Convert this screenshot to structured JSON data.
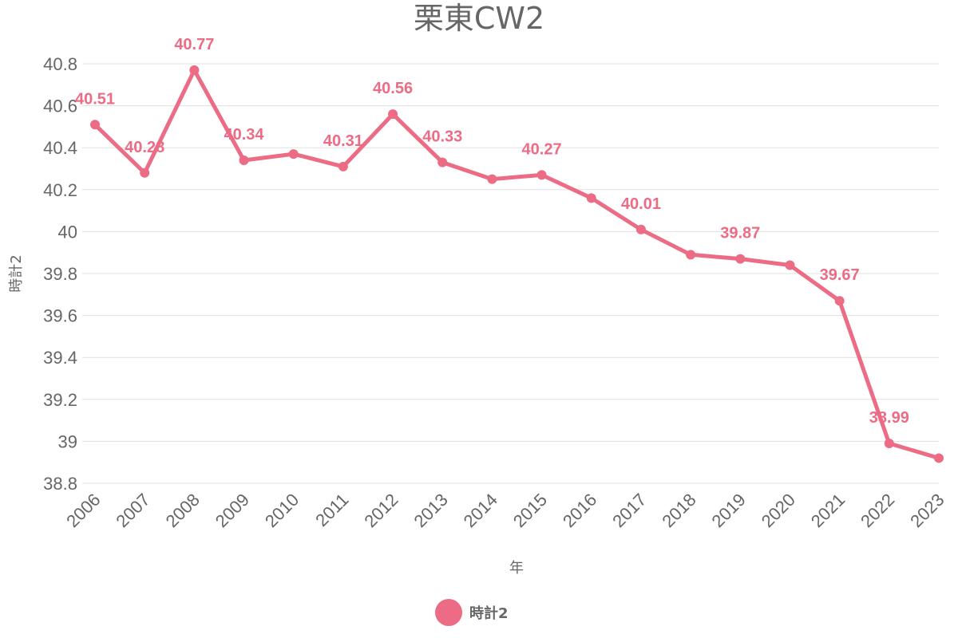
{
  "chart_data": {
    "type": "line",
    "title": "栗東CW2",
    "xlabel": "年",
    "ylabel": "時計2",
    "ylim": [
      38.8,
      40.8
    ],
    "yticks": [
      "40.8",
      "40.6",
      "40.4",
      "40.2",
      "40",
      "39.8",
      "39.6",
      "39.4",
      "39.2",
      "39",
      "38.8"
    ],
    "grid": true,
    "legend_position": "bottom",
    "categories": [
      "2006",
      "2007",
      "2008",
      "2009",
      "2010",
      "2011",
      "2012",
      "2013",
      "2014",
      "2015",
      "2016",
      "2017",
      "2018",
      "2019",
      "2020",
      "2021",
      "2022",
      "2023"
    ],
    "series": [
      {
        "name": "時計2",
        "color": "#ec6b85",
        "values": [
          40.51,
          40.28,
          40.77,
          40.34,
          40.37,
          40.31,
          40.56,
          40.33,
          40.25,
          40.27,
          40.16,
          40.01,
          39.89,
          39.87,
          39.84,
          39.67,
          38.99,
          38.92
        ],
        "data_labels": [
          "40.51",
          "40.28",
          "40.77",
          "40.34",
          "",
          "40.31",
          "40.56",
          "40.33",
          "",
          "40.27",
          "",
          "40.01",
          "",
          "39.87",
          "",
          "39.67",
          "38.99",
          ""
        ]
      }
    ]
  }
}
